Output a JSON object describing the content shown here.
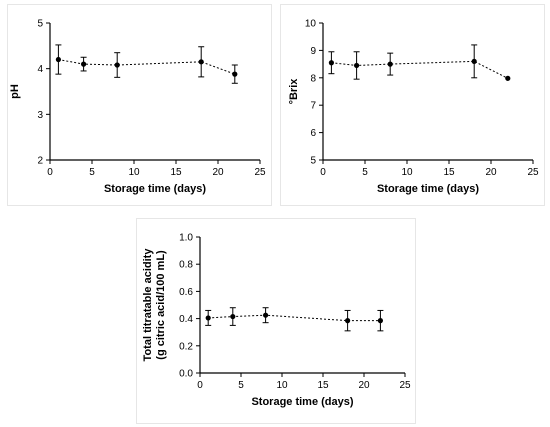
{
  "chart_data": [
    {
      "type": "line",
      "xlabel": "Storage time (days)",
      "ylabel": "pH",
      "xlim": [
        0,
        25
      ],
      "ylim": [
        2,
        5
      ],
      "xticks": [
        0,
        5,
        10,
        15,
        20,
        25
      ],
      "yticks": [
        2,
        3,
        4,
        5
      ],
      "x": [
        1,
        4,
        8,
        18,
        22
      ],
      "series": [
        {
          "values": [
            4.2,
            4.1,
            4.08,
            4.15,
            3.88
          ],
          "errors": [
            0.32,
            0.15,
            0.27,
            0.33,
            0.2
          ]
        }
      ],
      "line_style": "dotted",
      "grid": false
    },
    {
      "type": "line",
      "xlabel": "Storage time (days)",
      "ylabel": "°Brix",
      "xlim": [
        0,
        25
      ],
      "ylim": [
        5,
        10
      ],
      "xticks": [
        0,
        5,
        10,
        15,
        20,
        25
      ],
      "yticks": [
        5,
        6,
        7,
        8,
        9,
        10
      ],
      "x": [
        1,
        4,
        8,
        18,
        22
      ],
      "series": [
        {
          "values": [
            8.55,
            8.45,
            8.5,
            8.6,
            7.98
          ],
          "errors": [
            0.4,
            0.5,
            0.4,
            0.6,
            0.0
          ]
        }
      ],
      "line_style": "dotted",
      "grid": false
    },
    {
      "type": "line",
      "xlabel": "Storage time (days)",
      "ylabel": "Total titratable acidity\n(g citric acid/100 mL)",
      "xlim": [
        0,
        25
      ],
      "ylim": [
        0,
        1
      ],
      "xticks": [
        0,
        5,
        10,
        15,
        20,
        25
      ],
      "yticks": [
        0.0,
        0.2,
        0.4,
        0.6,
        0.8,
        1.0
      ],
      "ytick_format": "0.0",
      "x": [
        1,
        4,
        8,
        18,
        22
      ],
      "series": [
        {
          "values": [
            0.405,
            0.415,
            0.425,
            0.385,
            0.385
          ],
          "errors": [
            0.055,
            0.065,
            0.055,
            0.075,
            0.075
          ]
        }
      ],
      "line_style": "dotted",
      "grid": false
    }
  ]
}
